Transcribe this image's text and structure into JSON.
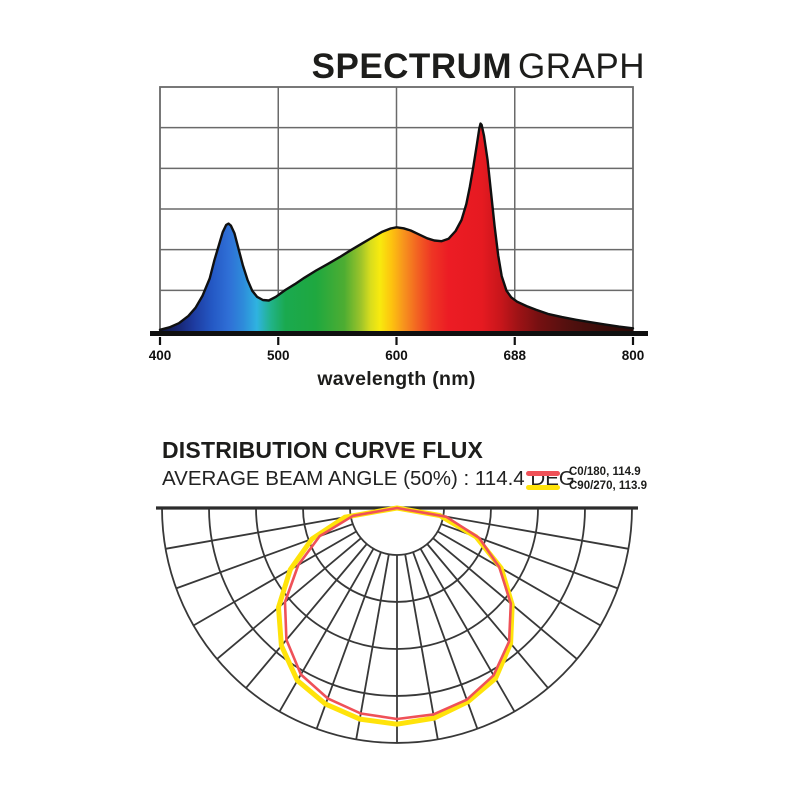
{
  "spectrum_section": {
    "title_strong": "SPECTRUM",
    "title_light": "GRAPH",
    "xlabel": "wavelength (nm)",
    "tick_labels": [
      "400",
      "500",
      "600",
      "688",
      "800"
    ]
  },
  "distribution_section": {
    "title": "DISTRIBUTION CURVE FLUX",
    "subtitle": "AVERAGE BEAM ANGLE  (50%) : 114.4 DEG",
    "legend": [
      {
        "label": "C0/180, 114.9",
        "color": "#ef5158"
      },
      {
        "label": "C90/270, 113.9",
        "color": "#ffe30a"
      }
    ]
  },
  "chart_data": [
    {
      "type": "area",
      "title": "SPECTRUM GRAPH",
      "xlabel": "wavelength (nm)",
      "x_range": [
        400,
        800
      ],
      "x_tick_labels": [
        "400",
        "500",
        "600",
        "688",
        "800"
      ],
      "y_range": [
        0,
        1
      ],
      "grid_rows": 6,
      "grid_cols": 4,
      "grid_color": "#6a6a6a",
      "axis_color": "#101010",
      "outline_color": "#101010",
      "points": [
        [
          400,
          0.005
        ],
        [
          408,
          0.015
        ],
        [
          416,
          0.032
        ],
        [
          424,
          0.062
        ],
        [
          430,
          0.095
        ],
        [
          436,
          0.145
        ],
        [
          442,
          0.215
        ],
        [
          446,
          0.29
        ],
        [
          450,
          0.355
        ],
        [
          453,
          0.405
        ],
        [
          456,
          0.435
        ],
        [
          458,
          0.44
        ],
        [
          460,
          0.432
        ],
        [
          463,
          0.4
        ],
        [
          466,
          0.345
        ],
        [
          470,
          0.27
        ],
        [
          474,
          0.21
        ],
        [
          478,
          0.165
        ],
        [
          482,
          0.14
        ],
        [
          487,
          0.127
        ],
        [
          492,
          0.125
        ],
        [
          498,
          0.14
        ],
        [
          506,
          0.168
        ],
        [
          514,
          0.192
        ],
        [
          522,
          0.218
        ],
        [
          532,
          0.248
        ],
        [
          542,
          0.275
        ],
        [
          552,
          0.303
        ],
        [
          562,
          0.333
        ],
        [
          572,
          0.362
        ],
        [
          580,
          0.385
        ],
        [
          588,
          0.407
        ],
        [
          595,
          0.42
        ],
        [
          600,
          0.425
        ],
        [
          606,
          0.421
        ],
        [
          612,
          0.412
        ],
        [
          619,
          0.396
        ],
        [
          626,
          0.38
        ],
        [
          632,
          0.371
        ],
        [
          638,
          0.368
        ],
        [
          644,
          0.378
        ],
        [
          650,
          0.41
        ],
        [
          655,
          0.455
        ],
        [
          659,
          0.52
        ],
        [
          662,
          0.59
        ],
        [
          665,
          0.675
        ],
        [
          668,
          0.765
        ],
        [
          670,
          0.83
        ],
        [
          671,
          0.85
        ],
        [
          672,
          0.845
        ],
        [
          674,
          0.8
        ],
        [
          677,
          0.7
        ],
        [
          680,
          0.565
        ],
        [
          683,
          0.43
        ],
        [
          686,
          0.31
        ],
        [
          689,
          0.225
        ],
        [
          693,
          0.165
        ],
        [
          697,
          0.138
        ],
        [
          702,
          0.12
        ],
        [
          710,
          0.102
        ],
        [
          718,
          0.087
        ],
        [
          728,
          0.07
        ],
        [
          740,
          0.057
        ],
        [
          752,
          0.046
        ],
        [
          764,
          0.036
        ],
        [
          776,
          0.027
        ],
        [
          788,
          0.018
        ],
        [
          800,
          0.011
        ]
      ],
      "gradient_stops": [
        {
          "at": 0.0,
          "color": "#0f1638"
        },
        {
          "at": 0.035,
          "color": "#17246e"
        },
        {
          "at": 0.07,
          "color": "#1d3a9e"
        },
        {
          "at": 0.11,
          "color": "#2458c4"
        },
        {
          "at": 0.145,
          "color": "#2f6fd6"
        },
        {
          "at": 0.175,
          "color": "#2e8ada"
        },
        {
          "at": 0.205,
          "color": "#2fb3e0"
        },
        {
          "at": 0.235,
          "color": "#21b387"
        },
        {
          "at": 0.265,
          "color": "#1aa94f"
        },
        {
          "at": 0.33,
          "color": "#1fa83f"
        },
        {
          "at": 0.39,
          "color": "#4ead32"
        },
        {
          "at": 0.425,
          "color": "#9ec42a"
        },
        {
          "at": 0.445,
          "color": "#d8dd1d"
        },
        {
          "at": 0.465,
          "color": "#f8ea0e"
        },
        {
          "at": 0.49,
          "color": "#fdc20f"
        },
        {
          "at": 0.515,
          "color": "#f7941d"
        },
        {
          "at": 0.545,
          "color": "#f26122"
        },
        {
          "at": 0.575,
          "color": "#ee3524"
        },
        {
          "at": 0.61,
          "color": "#ec1c24"
        },
        {
          "at": 0.68,
          "color": "#e61a21"
        },
        {
          "at": 0.72,
          "color": "#c8161b"
        },
        {
          "at": 0.755,
          "color": "#a01316"
        },
        {
          "at": 0.8,
          "color": "#761011"
        },
        {
          "at": 0.86,
          "color": "#54100f"
        },
        {
          "at": 0.93,
          "color": "#3c0d0a"
        },
        {
          "at": 1.0,
          "color": "#2c0a07"
        }
      ]
    },
    {
      "type": "line",
      "subtype": "polar-semicircle",
      "title": "DISTRIBUTION CURVE FLUX",
      "average_beam_angle_50pct_deg": 114.4,
      "grid_color": "#383838",
      "rings": [
        0.2,
        0.4,
        0.6,
        0.8,
        1.0
      ],
      "spoke_step_deg": 10,
      "spoke_inner_frac": 0.2,
      "angles_deg": [
        -90,
        -80,
        -70,
        -60,
        -50,
        -40,
        -30,
        -20,
        -10,
        0,
        10,
        20,
        30,
        40,
        50,
        60,
        70,
        80,
        90
      ],
      "series": [
        {
          "name": "C90/270",
          "beam_angle": 113.9,
          "color": "#ffe30a",
          "width": 5,
          "values": [
            0,
            0.225,
            0.385,
            0.525,
            0.658,
            0.765,
            0.848,
            0.888,
            0.912,
            0.92,
            0.908,
            0.878,
            0.838,
            0.752,
            0.64,
            0.512,
            0.358,
            0.185,
            0
          ]
        },
        {
          "name": "C0/180",
          "beam_angle": 114.9,
          "color": "#ef5158",
          "width": 2.6,
          "values": [
            0,
            0.19,
            0.35,
            0.485,
            0.622,
            0.732,
            0.818,
            0.862,
            0.888,
            0.898,
            0.892,
            0.868,
            0.822,
            0.742,
            0.632,
            0.502,
            0.372,
            0.212,
            0
          ]
        }
      ]
    }
  ]
}
